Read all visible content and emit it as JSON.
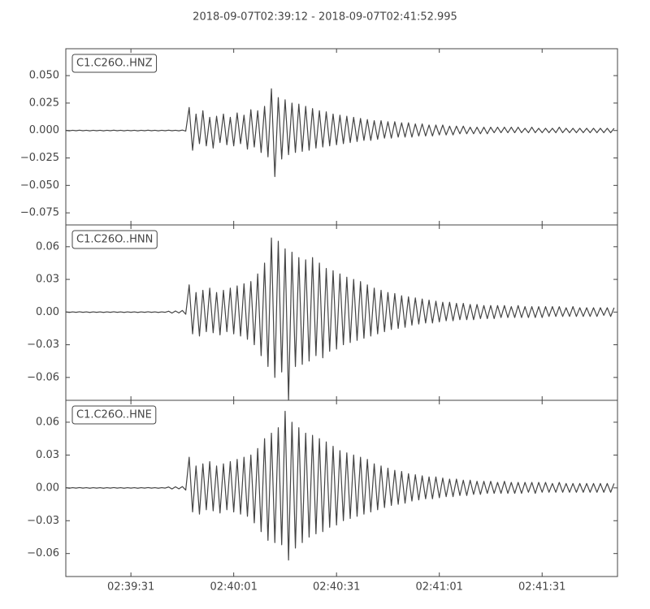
{
  "title": "2018-09-07T02:39:12  -  2018-09-07T02:41:52.995",
  "chart_data": [
    {
      "type": "line",
      "label": "C1.C26O..HNZ",
      "color": "#444444",
      "x": [
        0,
        1,
        2,
        3,
        4,
        5,
        6,
        7,
        8,
        9,
        10,
        11,
        12,
        13,
        14,
        15,
        16,
        17,
        18,
        19,
        20,
        21,
        22,
        23,
        24,
        25,
        26,
        27,
        28,
        29,
        30,
        31,
        32,
        33,
        34,
        35,
        36,
        37,
        38,
        39,
        40,
        41,
        42,
        43,
        44,
        45,
        46,
        47,
        48,
        49,
        50,
        51,
        52,
        53,
        54,
        55,
        56,
        57,
        58,
        59,
        60,
        61,
        62,
        63,
        64,
        65,
        66,
        67,
        68,
        69,
        70,
        71,
        72,
        73,
        74,
        75,
        76,
        77,
        78,
        79,
        80,
        81,
        82,
        83,
        84,
        85,
        86,
        87,
        88,
        89,
        90,
        91,
        92,
        93,
        94,
        95,
        96,
        97,
        98,
        99,
        100,
        101,
        102,
        103,
        104,
        105,
        106,
        107,
        108,
        109,
        110,
        111,
        112,
        113,
        114,
        115,
        116,
        117,
        118,
        119,
        120,
        121,
        122,
        123,
        124,
        125,
        126,
        127,
        128,
        129,
        130,
        131,
        132,
        133,
        134,
        135,
        136,
        137,
        138,
        139,
        140,
        141,
        142,
        143,
        144,
        145,
        146,
        147,
        148,
        149,
        150,
        151,
        152,
        153,
        154,
        155,
        156,
        157,
        158,
        159,
        160
      ],
      "values": [
        0.0002,
        -0.0003,
        0.0002,
        -0.0002,
        0.0003,
        -0.0002,
        0.0002,
        -0.0003,
        0.0002,
        -0.0002,
        0.0002,
        -0.0003,
        0.0002,
        -0.0002,
        0.0003,
        -0.0002,
        0.0002,
        -0.0003,
        0.0002,
        -0.0002,
        0.0002,
        -0.0003,
        0.0002,
        -0.0002,
        0.0003,
        -0.0002,
        0.0002,
        -0.0003,
        0.0002,
        -0.0002,
        0.0003,
        -0.0002,
        0.0002,
        -0.0003,
        0.0004,
        -0.0005,
        0.021,
        -0.018,
        0.015,
        -0.012,
        0.018,
        -0.014,
        0.012,
        -0.016,
        0.013,
        -0.011,
        0.015,
        -0.013,
        0.012,
        -0.014,
        0.016,
        -0.012,
        0.014,
        -0.017,
        0.019,
        -0.015,
        0.018,
        -0.02,
        0.022,
        -0.024,
        0.038,
        -0.042,
        0.03,
        -0.026,
        0.028,
        -0.022,
        0.025,
        -0.02,
        0.024,
        -0.019,
        0.022,
        -0.018,
        0.02,
        -0.016,
        0.018,
        -0.015,
        0.017,
        -0.014,
        0.015,
        -0.013,
        0.014,
        -0.012,
        0.013,
        -0.011,
        0.012,
        -0.01,
        0.011,
        -0.009,
        0.01,
        -0.009,
        0.009,
        -0.008,
        0.009,
        -0.007,
        0.008,
        -0.007,
        0.008,
        -0.006,
        0.007,
        -0.006,
        0.007,
        -0.006,
        0.006,
        -0.005,
        0.006,
        -0.005,
        0.005,
        -0.005,
        0.005,
        -0.004,
        0.005,
        -0.004,
        0.004,
        -0.004,
        0.004,
        -0.003,
        0.004,
        -0.003,
        0.003,
        -0.003,
        0.003,
        -0.003,
        0.003,
        -0.003,
        0.003,
        -0.002,
        0.003,
        -0.002,
        0.003,
        -0.002,
        0.003,
        -0.002,
        0.003,
        -0.002,
        0.002,
        -0.002,
        0.003,
        -0.002,
        0.002,
        -0.002,
        0.002,
        -0.002,
        0.002,
        -0.002,
        0.003,
        -0.002,
        0.002,
        -0.002,
        0.002,
        -0.002,
        0.002,
        -0.002,
        0.002,
        -0.002,
        0.002,
        -0.002,
        0.002,
        -0.002,
        0.002,
        -0.002,
        0.002
      ],
      "xlim": [
        0,
        160.995
      ],
      "ylim": [
        -0.086,
        0.0745
      ],
      "yticks": [
        {
          "value": 0.05,
          "label": "0.050"
        },
        {
          "value": 0.025,
          "label": "0.025"
        },
        {
          "value": 0,
          "label": "0.000"
        },
        {
          "value": -0.025,
          "label": "−0.025"
        },
        {
          "value": -0.05,
          "label": "−0.050"
        },
        {
          "value": -0.075,
          "label": "−0.075"
        }
      ]
    },
    {
      "type": "line",
      "label": "C1.C26O..HNN",
      "color": "#444444",
      "x": [
        0,
        1,
        2,
        3,
        4,
        5,
        6,
        7,
        8,
        9,
        10,
        11,
        12,
        13,
        14,
        15,
        16,
        17,
        18,
        19,
        20,
        21,
        22,
        23,
        24,
        25,
        26,
        27,
        28,
        29,
        30,
        31,
        32,
        33,
        34,
        35,
        36,
        37,
        38,
        39,
        40,
        41,
        42,
        43,
        44,
        45,
        46,
        47,
        48,
        49,
        50,
        51,
        52,
        53,
        54,
        55,
        56,
        57,
        58,
        59,
        60,
        61,
        62,
        63,
        64,
        65,
        66,
        67,
        68,
        69,
        70,
        71,
        72,
        73,
        74,
        75,
        76,
        77,
        78,
        79,
        80,
        81,
        82,
        83,
        84,
        85,
        86,
        87,
        88,
        89,
        90,
        91,
        92,
        93,
        94,
        95,
        96,
        97,
        98,
        99,
        100,
        101,
        102,
        103,
        104,
        105,
        106,
        107,
        108,
        109,
        110,
        111,
        112,
        113,
        114,
        115,
        116,
        117,
        118,
        119,
        120,
        121,
        122,
        123,
        124,
        125,
        126,
        127,
        128,
        129,
        130,
        131,
        132,
        133,
        134,
        135,
        136,
        137,
        138,
        139,
        140,
        141,
        142,
        143,
        144,
        145,
        146,
        147,
        148,
        149,
        150,
        151,
        152,
        153,
        154,
        155,
        156,
        157,
        158,
        159,
        160
      ],
      "values": [
        0.0002,
        -0.0003,
        0.0002,
        -0.0002,
        0.0003,
        -0.0002,
        0.0002,
        -0.0003,
        0.0002,
        -0.0002,
        0.0002,
        -0.0003,
        0.0002,
        -0.0002,
        0.0003,
        -0.0002,
        0.0002,
        -0.0003,
        0.0002,
        -0.0002,
        0.0002,
        -0.0003,
        0.0002,
        -0.0002,
        0.0003,
        -0.0002,
        0.0002,
        -0.0003,
        0.0002,
        -0.0002,
        0.0008,
        -0.0009,
        0.001,
        -0.0008,
        0.0015,
        -0.002,
        0.025,
        -0.02,
        0.018,
        -0.022,
        0.02,
        -0.018,
        0.022,
        -0.019,
        0.018,
        -0.021,
        0.02,
        -0.018,
        0.022,
        -0.02,
        0.024,
        -0.022,
        0.026,
        -0.025,
        0.028,
        -0.03,
        0.035,
        -0.04,
        0.045,
        -0.05,
        0.068,
        -0.06,
        0.065,
        -0.055,
        0.058,
        -0.081,
        0.055,
        -0.05,
        0.05,
        -0.048,
        0.048,
        -0.045,
        0.05,
        -0.04,
        0.045,
        -0.042,
        0.04,
        -0.036,
        0.038,
        -0.034,
        0.035,
        -0.03,
        0.032,
        -0.028,
        0.03,
        -0.026,
        0.028,
        -0.024,
        0.025,
        -0.022,
        0.022,
        -0.02,
        0.02,
        -0.018,
        0.018,
        -0.016,
        0.017,
        -0.015,
        0.015,
        -0.014,
        0.014,
        -0.012,
        0.013,
        -0.011,
        0.012,
        -0.01,
        0.011,
        -0.01,
        0.01,
        -0.009,
        0.009,
        -0.008,
        0.009,
        -0.008,
        0.008,
        -0.007,
        0.008,
        -0.007,
        0.007,
        -0.007,
        0.007,
        -0.006,
        0.006,
        -0.006,
        0.006,
        -0.006,
        0.006,
        -0.005,
        0.006,
        -0.005,
        0.005,
        -0.005,
        0.006,
        -0.005,
        0.005,
        -0.005,
        0.005,
        -0.005,
        0.005,
        -0.005,
        0.005,
        -0.004,
        0.005,
        -0.004,
        0.005,
        -0.004,
        0.004,
        -0.004,
        0.005,
        -0.004,
        0.004,
        -0.004,
        0.004,
        -0.004,
        0.004,
        -0.004,
        0.004,
        -0.003,
        0.004,
        -0.004,
        0.004
      ],
      "xlim": [
        0,
        160.995
      ],
      "ylim": [
        -0.081,
        0.08
      ],
      "yticks": [
        {
          "value": 0.06,
          "label": "0.06"
        },
        {
          "value": 0.03,
          "label": "0.03"
        },
        {
          "value": 0,
          "label": "0.00"
        },
        {
          "value": -0.03,
          "label": "−0.03"
        },
        {
          "value": -0.06,
          "label": "−0.06"
        }
      ]
    },
    {
      "type": "line",
      "label": "C1.C26O..HNE",
      "color": "#444444",
      "x": [
        0,
        1,
        2,
        3,
        4,
        5,
        6,
        7,
        8,
        9,
        10,
        11,
        12,
        13,
        14,
        15,
        16,
        17,
        18,
        19,
        20,
        21,
        22,
        23,
        24,
        25,
        26,
        27,
        28,
        29,
        30,
        31,
        32,
        33,
        34,
        35,
        36,
        37,
        38,
        39,
        40,
        41,
        42,
        43,
        44,
        45,
        46,
        47,
        48,
        49,
        50,
        51,
        52,
        53,
        54,
        55,
        56,
        57,
        58,
        59,
        60,
        61,
        62,
        63,
        64,
        65,
        66,
        67,
        68,
        69,
        70,
        71,
        72,
        73,
        74,
        75,
        76,
        77,
        78,
        79,
        80,
        81,
        82,
        83,
        84,
        85,
        86,
        87,
        88,
        89,
        90,
        91,
        92,
        93,
        94,
        95,
        96,
        97,
        98,
        99,
        100,
        101,
        102,
        103,
        104,
        105,
        106,
        107,
        108,
        109,
        110,
        111,
        112,
        113,
        114,
        115,
        116,
        117,
        118,
        119,
        120,
        121,
        122,
        123,
        124,
        125,
        126,
        127,
        128,
        129,
        130,
        131,
        132,
        133,
        134,
        135,
        136,
        137,
        138,
        139,
        140,
        141,
        142,
        143,
        144,
        145,
        146,
        147,
        148,
        149,
        150,
        151,
        152,
        153,
        154,
        155,
        156,
        157,
        158,
        159,
        160
      ],
      "values": [
        0.0002,
        -0.0003,
        0.0002,
        -0.0002,
        0.0003,
        -0.0002,
        0.0002,
        -0.0003,
        0.0002,
        -0.0002,
        0.0002,
        -0.0003,
        0.0002,
        -0.0002,
        0.0003,
        -0.0002,
        0.0002,
        -0.0003,
        0.0002,
        -0.0002,
        0.0002,
        -0.0003,
        0.0002,
        -0.0002,
        0.0003,
        -0.0002,
        0.0002,
        -0.0003,
        0.0002,
        -0.0002,
        0.0008,
        -0.001,
        0.001,
        -0.0009,
        0.0012,
        -0.002,
        0.028,
        -0.022,
        0.02,
        -0.024,
        0.022,
        -0.02,
        0.024,
        -0.021,
        0.02,
        -0.023,
        0.022,
        -0.02,
        0.024,
        -0.022,
        0.026,
        -0.024,
        0.028,
        -0.026,
        0.03,
        -0.032,
        0.036,
        -0.04,
        0.045,
        -0.048,
        0.05,
        -0.05,
        0.055,
        -0.052,
        0.07,
        -0.066,
        0.06,
        -0.055,
        0.055,
        -0.05,
        0.05,
        -0.045,
        0.048,
        -0.042,
        0.045,
        -0.04,
        0.042,
        -0.036,
        0.038,
        -0.034,
        0.034,
        -0.03,
        0.032,
        -0.028,
        0.03,
        -0.026,
        0.028,
        -0.024,
        0.026,
        -0.022,
        0.022,
        -0.02,
        0.02,
        -0.018,
        0.018,
        -0.016,
        0.016,
        -0.015,
        0.015,
        -0.014,
        0.013,
        -0.012,
        0.012,
        -0.011,
        0.011,
        -0.01,
        0.01,
        -0.01,
        0.01,
        -0.009,
        0.009,
        -0.008,
        0.008,
        -0.008,
        0.008,
        -0.007,
        0.007,
        -0.007,
        0.007,
        -0.006,
        0.006,
        -0.006,
        0.006,
        -0.005,
        0.006,
        -0.005,
        0.005,
        -0.005,
        0.006,
        -0.005,
        0.005,
        -0.005,
        0.005,
        -0.005,
        0.005,
        -0.004,
        0.005,
        -0.005,
        0.005,
        -0.004,
        0.005,
        -0.004,
        0.004,
        -0.004,
        0.005,
        -0.004,
        0.004,
        -0.004,
        0.004,
        -0.004,
        0.004,
        -0.004,
        0.004,
        -0.004,
        0.004,
        -0.004,
        0.004,
        -0.004,
        0.004,
        -0.004,
        0.004
      ],
      "xlim": [
        0,
        160.995
      ],
      "ylim": [
        -0.081,
        0.08
      ],
      "yticks": [
        {
          "value": 0.06,
          "label": "0.06"
        },
        {
          "value": 0.03,
          "label": "0.03"
        },
        {
          "value": 0,
          "label": "0.00"
        },
        {
          "value": -0.03,
          "label": "−0.03"
        },
        {
          "value": -0.06,
          "label": "−0.06"
        }
      ],
      "xticks": [
        {
          "value": 19,
          "label": "02:39:31"
        },
        {
          "value": 49,
          "label": "02:40:01"
        },
        {
          "value": 79,
          "label": "02:40:31"
        },
        {
          "value": 109,
          "label": "02:41:01"
        },
        {
          "value": 139,
          "label": "02:41:31"
        }
      ]
    }
  ]
}
